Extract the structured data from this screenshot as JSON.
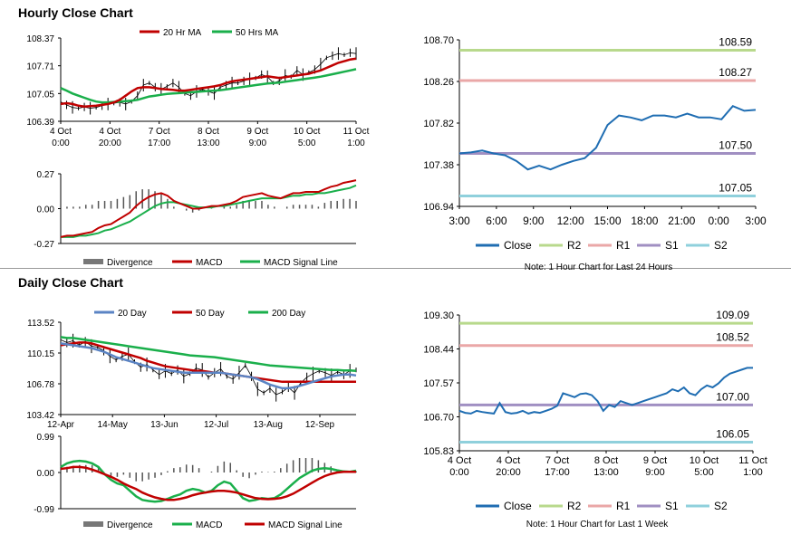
{
  "sections": {
    "hourly_title": "Hourly Close Chart",
    "daily_title": "Daily Close Chart"
  },
  "colors": {
    "close": "#1f6db2",
    "r2": "#b8d98c",
    "r1": "#eaa7a7",
    "s1": "#a08fc2",
    "s2": "#8fd0dc",
    "ma_short": "#c00000",
    "ma_long": "#1aaf4b",
    "ma20_daily": "#5b84c4",
    "divergence": "#555555",
    "price": "#000000"
  },
  "chart_data": [
    {
      "id": "hourly-price",
      "type": "line",
      "title": "",
      "legend": [
        "20 Hr MA",
        "50 Hrs MA"
      ],
      "ylim": [
        106.39,
        108.37
      ],
      "y_ticks": [
        "108.37",
        "107.71",
        "107.05",
        "106.39"
      ],
      "x_ticks": [
        [
          "4 Oct",
          "0:00"
        ],
        [
          "4 Oct",
          "20:00"
        ],
        [
          "7 Oct",
          "17:00"
        ],
        [
          "8 Oct",
          "13:00"
        ],
        [
          "9 Oct",
          "9:00"
        ],
        [
          "10 Oct",
          "5:00"
        ],
        [
          "11 Oct",
          "1:00"
        ]
      ],
      "series": [
        {
          "name": "Close",
          "values": [
            106.85,
            106.78,
            106.72,
            106.7,
            106.73,
            106.7,
            106.72,
            106.76,
            106.8,
            106.82,
            106.84,
            106.8,
            106.86,
            107.0,
            107.25,
            107.3,
            107.2,
            107.15,
            107.22,
            107.3,
            107.2,
            107.05,
            107.0,
            107.1,
            107.15,
            107.1,
            107.05,
            107.2,
            107.25,
            107.3,
            107.3,
            107.35,
            107.4,
            107.42,
            107.5,
            107.45,
            107.3,
            107.35,
            107.48,
            107.45,
            107.6,
            107.5,
            107.55,
            107.62,
            107.75,
            107.9,
            107.95,
            108.0,
            107.97,
            108.02,
            108.0
          ]
        },
        {
          "name": "20 Hr MA",
          "values": [
            106.8,
            106.82,
            106.8,
            106.76,
            106.74,
            106.75,
            106.76,
            106.78,
            106.8,
            106.84,
            106.9,
            107.0,
            107.1,
            107.18,
            107.2,
            107.2,
            107.18,
            107.16,
            107.15,
            107.14,
            107.12,
            107.12,
            107.14,
            107.16,
            107.18,
            107.2,
            107.22,
            107.25,
            107.3,
            107.34,
            107.36,
            107.38,
            107.4,
            107.42,
            107.44,
            107.46,
            107.44,
            107.42,
            107.44,
            107.46,
            107.48,
            107.5,
            107.52,
            107.56,
            107.6,
            107.66,
            107.72,
            107.78,
            107.82,
            107.86,
            107.88
          ]
        },
        {
          "name": "50 Hrs MA",
          "values": [
            107.18,
            107.12,
            107.05,
            107.0,
            106.95,
            106.9,
            106.86,
            106.84,
            106.84,
            106.85,
            106.86,
            106.87,
            106.88,
            106.9,
            106.94,
            106.98,
            107.0,
            107.02,
            107.04,
            107.05,
            107.06,
            107.07,
            107.08,
            107.09,
            107.1,
            107.11,
            107.12,
            107.13,
            107.15,
            107.17,
            107.19,
            107.21,
            107.23,
            107.25,
            107.27,
            107.29,
            107.3,
            107.31,
            107.33,
            107.35,
            107.37,
            107.39,
            107.41,
            107.43,
            107.45,
            107.48,
            107.51,
            107.54,
            107.57,
            107.6,
            107.63
          ]
        }
      ]
    },
    {
      "id": "hourly-macd",
      "type": "line",
      "ylim": [
        -0.27,
        0.27
      ],
      "y_ticks": [
        "0.27",
        "0.00",
        "-0.27"
      ],
      "legend": [
        "Divergence",
        "MACD",
        "MACD Signal Line"
      ],
      "series": [
        {
          "name": "MACD",
          "values": [
            -0.22,
            -0.21,
            -0.21,
            -0.2,
            -0.19,
            -0.18,
            -0.15,
            -0.13,
            -0.12,
            -0.09,
            -0.06,
            -0.03,
            0.02,
            0.06,
            0.09,
            0.11,
            0.12,
            0.1,
            0.06,
            0.04,
            0.02,
            0.0,
            0.0,
            0.01,
            0.02,
            0.02,
            0.03,
            0.04,
            0.06,
            0.09,
            0.1,
            0.11,
            0.12,
            0.1,
            0.09,
            0.08,
            0.1,
            0.12,
            0.12,
            0.13,
            0.13,
            0.13,
            0.15,
            0.17,
            0.18,
            0.2,
            0.21,
            0.22
          ]
        },
        {
          "name": "MACD Signal Line",
          "values": [
            -0.22,
            -0.22,
            -0.22,
            -0.21,
            -0.21,
            -0.2,
            -0.19,
            -0.17,
            -0.16,
            -0.14,
            -0.12,
            -0.1,
            -0.07,
            -0.04,
            -0.01,
            0.02,
            0.04,
            0.05,
            0.05,
            0.04,
            0.03,
            0.02,
            0.01,
            0.01,
            0.01,
            0.02,
            0.02,
            0.03,
            0.04,
            0.05,
            0.06,
            0.07,
            0.08,
            0.08,
            0.08,
            0.08,
            0.09,
            0.1,
            0.1,
            0.11,
            0.11,
            0.12,
            0.12,
            0.13,
            0.14,
            0.15,
            0.16,
            0.18
          ]
        }
      ]
    },
    {
      "id": "hourly-levels",
      "type": "line",
      "ylim": [
        106.94,
        108.7
      ],
      "y_ticks": [
        "108.70",
        "108.26",
        "107.82",
        "107.38",
        "106.94"
      ],
      "x_ticks": [
        "3:00",
        "6:00",
        "9:00",
        "12:00",
        "15:00",
        "18:00",
        "21:00",
        "0:00",
        "3:00"
      ],
      "levels": [
        {
          "name": "R2",
          "value": 108.59,
          "label": "108.59"
        },
        {
          "name": "R1",
          "value": 108.27,
          "label": "108.27"
        },
        {
          "name": "S1",
          "value": 107.5,
          "label": "107.50"
        },
        {
          "name": "S2",
          "value": 107.05,
          "label": "107.05"
        }
      ],
      "series": [
        {
          "name": "Close",
          "values": [
            107.5,
            107.51,
            107.53,
            107.5,
            107.48,
            107.42,
            107.33,
            107.37,
            107.33,
            107.38,
            107.42,
            107.45,
            107.56,
            107.8,
            107.9,
            107.88,
            107.85,
            107.9,
            107.9,
            107.88,
            107.92,
            107.88,
            107.88,
            107.86,
            108.0,
            107.95,
            107.96
          ]
        }
      ],
      "legend": [
        "Close",
        "R2",
        "R1",
        "S1",
        "S2"
      ],
      "note": "Note: 1 Hour Chart for Last 24 Hours"
    },
    {
      "id": "daily-price",
      "type": "line",
      "legend": [
        "20 Day",
        "50 Day",
        "200 Day"
      ],
      "ylim": [
        103.42,
        113.52
      ],
      "y_ticks": [
        "113.52",
        "110.15",
        "106.78",
        "103.42"
      ],
      "x_ticks": [
        "12-Apr",
        "14-May",
        "13-Jun",
        "12-Jul",
        "13-Aug",
        "12-Sep"
      ],
      "series": [
        {
          "name": "Close",
          "values": [
            111.6,
            111.3,
            111.5,
            111.0,
            111.4,
            110.9,
            110.8,
            110.4,
            109.8,
            109.4,
            109.8,
            110.0,
            109.2,
            108.6,
            108.9,
            108.3,
            107.8,
            108.2,
            107.9,
            108.3,
            107.6,
            107.9,
            108.5,
            108.3,
            107.5,
            108.0,
            108.4,
            107.6,
            107.3,
            108.0,
            108.8,
            107.6,
            106.2,
            105.8,
            106.3,
            105.6,
            105.9,
            106.4,
            105.8,
            106.9,
            107.5,
            107.9,
            108.2,
            108.0,
            107.7,
            108.1,
            107.8,
            108.2,
            108.3
          ]
        },
        {
          "name": "20 Day",
          "values": [
            111.2,
            111.1,
            111.0,
            110.9,
            110.8,
            110.7,
            110.5,
            110.3,
            110.0,
            109.7,
            109.5,
            109.3,
            109.1,
            108.9,
            108.7,
            108.5,
            108.4,
            108.3,
            108.2,
            108.1,
            108.0,
            108.0,
            108.0,
            108.0,
            108.0,
            108.0,
            108.0,
            107.9,
            107.8,
            107.7,
            107.6,
            107.5,
            107.3,
            107.0,
            106.7,
            106.5,
            106.3,
            106.3,
            106.4,
            106.6,
            106.8,
            107.0,
            107.2,
            107.4,
            107.6,
            107.7,
            107.8,
            107.8,
            107.7
          ]
        },
        {
          "name": "50 Day",
          "values": [
            111.0,
            111.1,
            111.2,
            111.3,
            111.3,
            111.2,
            111.0,
            110.8,
            110.6,
            110.4,
            110.2,
            110.0,
            109.8,
            109.6,
            109.3,
            109.1,
            108.9,
            108.7,
            108.6,
            108.5,
            108.4,
            108.3,
            108.2,
            108.2,
            108.1,
            108.0,
            108.0,
            107.9,
            107.8,
            107.7,
            107.6,
            107.5,
            107.4,
            107.3,
            107.2,
            107.1,
            107.0,
            107.0,
            107.0,
            107.0,
            107.0,
            107.0,
            107.0,
            107.0,
            107.0,
            107.0,
            107.0,
            107.0,
            107.0
          ]
        },
        {
          "name": "200 Day",
          "values": [
            111.9,
            111.8,
            111.8,
            111.7,
            111.6,
            111.5,
            111.4,
            111.3,
            111.2,
            111.1,
            111.0,
            110.9,
            110.8,
            110.7,
            110.6,
            110.5,
            110.4,
            110.3,
            110.2,
            110.1,
            110.0,
            109.9,
            109.85,
            109.8,
            109.75,
            109.7,
            109.6,
            109.5,
            109.4,
            109.3,
            109.2,
            109.1,
            109.0,
            108.9,
            108.8,
            108.75,
            108.7,
            108.65,
            108.6,
            108.55,
            108.5,
            108.45,
            108.4,
            108.35,
            108.3,
            108.3,
            108.25,
            108.25,
            108.2
          ]
        }
      ]
    },
    {
      "id": "daily-macd",
      "type": "line",
      "ylim": [
        -0.99,
        0.99
      ],
      "y_ticks": [
        "0.99",
        "0.00",
        "-0.99"
      ],
      "legend": [
        "Divergence",
        "MACD",
        "MACD Signal Line"
      ],
      "series": [
        {
          "name": "MACD",
          "values": [
            0.15,
            0.25,
            0.3,
            0.32,
            0.3,
            0.25,
            0.15,
            -0.05,
            -0.2,
            -0.3,
            -0.35,
            -0.5,
            -0.65,
            -0.75,
            -0.78,
            -0.8,
            -0.78,
            -0.72,
            -0.65,
            -0.6,
            -0.5,
            -0.45,
            -0.48,
            -0.55,
            -0.5,
            -0.35,
            -0.25,
            -0.3,
            -0.5,
            -0.7,
            -0.78,
            -0.75,
            -0.7,
            -0.72,
            -0.7,
            -0.6,
            -0.45,
            -0.3,
            -0.15,
            -0.05,
            0.05,
            0.1,
            0.12,
            0.1,
            0.06,
            0.03,
            0.02,
            0.05
          ]
        },
        {
          "name": "MACD Signal Line",
          "values": [
            0.1,
            0.12,
            0.15,
            0.15,
            0.13,
            0.08,
            0.02,
            -0.05,
            -0.12,
            -0.2,
            -0.3,
            -0.38,
            -0.45,
            -0.55,
            -0.62,
            -0.68,
            -0.72,
            -0.75,
            -0.75,
            -0.72,
            -0.68,
            -0.62,
            -0.58,
            -0.55,
            -0.52,
            -0.5,
            -0.5,
            -0.52,
            -0.55,
            -0.6,
            -0.65,
            -0.7,
            -0.72,
            -0.73,
            -0.72,
            -0.7,
            -0.65,
            -0.58,
            -0.48,
            -0.38,
            -0.28,
            -0.18,
            -0.1,
            -0.04,
            0.0,
            0.02,
            0.02,
            0.02
          ]
        }
      ]
    },
    {
      "id": "weekly-levels",
      "type": "line",
      "ylim": [
        105.83,
        109.3
      ],
      "y_ticks": [
        "109.30",
        "108.44",
        "107.57",
        "106.70",
        "105.83"
      ],
      "x_ticks": [
        [
          "4 Oct",
          "0:00"
        ],
        [
          "4 Oct",
          "20:00"
        ],
        [
          "7 Oct",
          "17:00"
        ],
        [
          "8 Oct",
          "13:00"
        ],
        [
          "9 Oct",
          "9:00"
        ],
        [
          "10 Oct",
          "5:00"
        ],
        [
          "11 Oct",
          "1:00"
        ]
      ],
      "levels": [
        {
          "name": "R2",
          "value": 109.09,
          "label": "109.09"
        },
        {
          "name": "R1",
          "value": 108.52,
          "label": "108.52"
        },
        {
          "name": "S1",
          "value": 107.0,
          "label": "107.00"
        },
        {
          "name": "S2",
          "value": 106.05,
          "label": "106.05"
        }
      ],
      "series": [
        {
          "name": "Close",
          "values": [
            106.85,
            106.8,
            106.78,
            106.85,
            106.82,
            106.8,
            106.78,
            107.05,
            106.82,
            106.78,
            106.8,
            106.85,
            106.78,
            106.82,
            106.8,
            106.85,
            106.9,
            106.98,
            107.3,
            107.25,
            107.2,
            107.28,
            107.3,
            107.25,
            107.1,
            106.85,
            107.0,
            106.95,
            107.1,
            107.05,
            107.0,
            107.05,
            107.1,
            107.15,
            107.2,
            107.25,
            107.3,
            107.4,
            107.35,
            107.45,
            107.3,
            107.25,
            107.4,
            107.5,
            107.45,
            107.55,
            107.7,
            107.8,
            107.85,
            107.9,
            107.95,
            107.95
          ]
        }
      ],
      "legend": [
        "Close",
        "R2",
        "R1",
        "S1",
        "S2"
      ],
      "note": "Note: 1 Hour Chart for Last 1 Week"
    }
  ]
}
